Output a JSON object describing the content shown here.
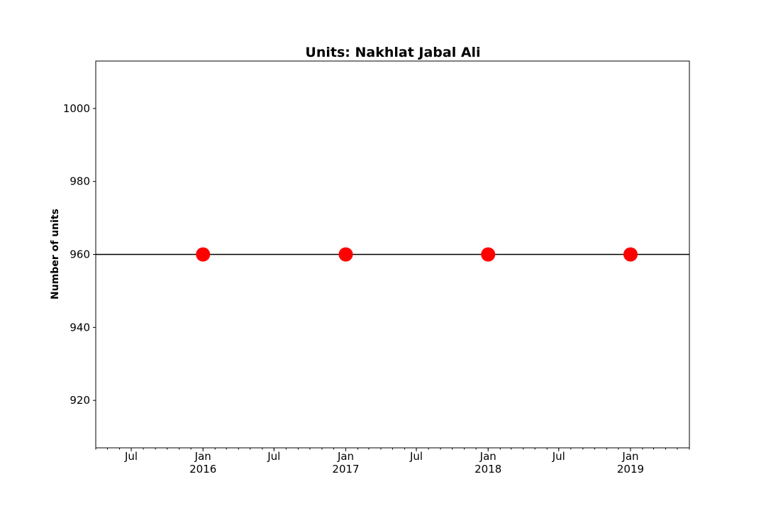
{
  "chart_data": {
    "type": "line",
    "title": "Units: Nakhlat Jabal Ali",
    "xlabel": "",
    "ylabel": "Number of units",
    "x": [
      "2016-01-01",
      "2017-01-01",
      "2018-01-01",
      "2019-01-01"
    ],
    "series": [
      {
        "values": [
          960,
          960,
          960,
          960
        ],
        "color": "#ff0000",
        "marker": "circle"
      }
    ],
    "reference_line": {
      "y": 960,
      "color": "#000000"
    },
    "xlim": [
      "2015-04-01",
      "2019-06-01"
    ],
    "ylim": [
      907,
      1013
    ],
    "yticks": [
      920,
      940,
      960,
      980,
      1000
    ],
    "xticks_major": [
      {
        "date": "2015-07-01",
        "label": "Jul",
        "sublabel": ""
      },
      {
        "date": "2016-01-01",
        "label": "Jan",
        "sublabel": "2016"
      },
      {
        "date": "2016-07-01",
        "label": "Jul",
        "sublabel": ""
      },
      {
        "date": "2017-01-01",
        "label": "Jan",
        "sublabel": "2017"
      },
      {
        "date": "2017-07-01",
        "label": "Jul",
        "sublabel": ""
      },
      {
        "date": "2018-01-01",
        "label": "Jan",
        "sublabel": "2018"
      },
      {
        "date": "2018-07-01",
        "label": "Jul",
        "sublabel": ""
      },
      {
        "date": "2019-01-01",
        "label": "Jan",
        "sublabel": "2019"
      }
    ],
    "xticks_minor": "monthly",
    "grid": false,
    "legend": false
  }
}
